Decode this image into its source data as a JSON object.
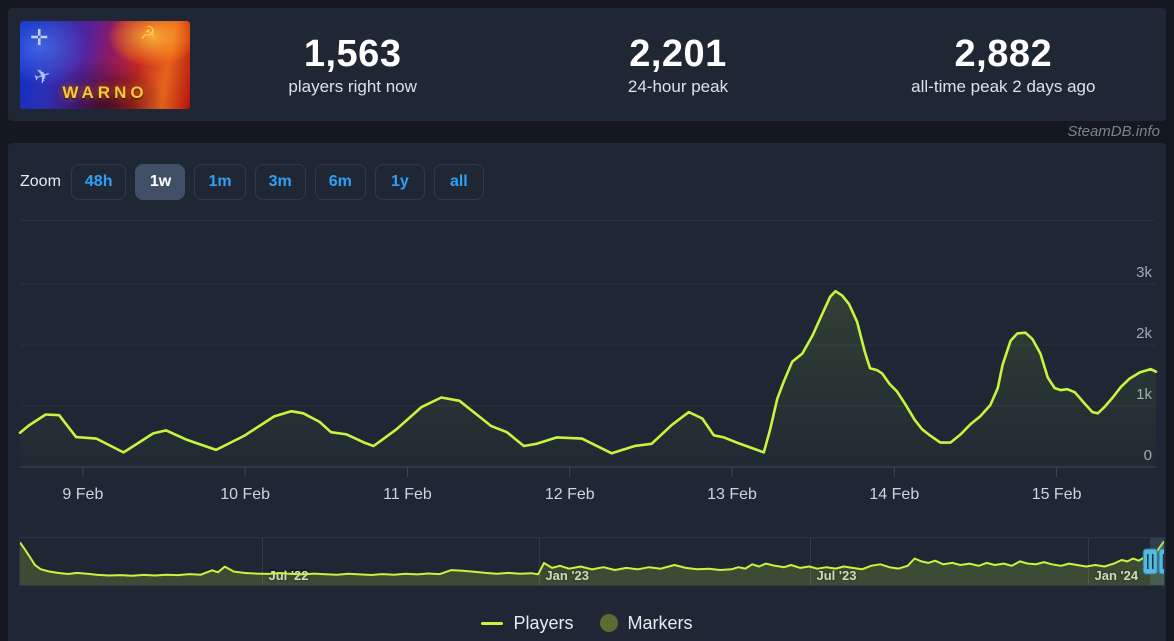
{
  "header": {
    "banner": {
      "game_title": "WARNO"
    },
    "stats": [
      {
        "value": "1,563",
        "label": "players right now"
      },
      {
        "value": "2,201",
        "label": "24-hour peak"
      },
      {
        "value": "2,882",
        "label": "all-time peak 2 days ago"
      }
    ]
  },
  "watermark": "SteamDB.info",
  "toolbar": {
    "zoom_label": "Zoom",
    "buttons": [
      {
        "label": "48h",
        "selected": false
      },
      {
        "label": "1w",
        "selected": true
      },
      {
        "label": "1m",
        "selected": false
      },
      {
        "label": "3m",
        "selected": false
      },
      {
        "label": "6m",
        "selected": false
      },
      {
        "label": "1y",
        "selected": false
      },
      {
        "label": "all",
        "selected": false
      }
    ]
  },
  "legend": [
    {
      "label": "Players",
      "marker": "line",
      "color": "#c6f53e"
    },
    {
      "label": "Markers",
      "marker": "circle",
      "color": "#5d6a34"
    }
  ],
  "chart_data": {
    "type": "line",
    "title": "WARNO concurrent players - 1 week view",
    "colors": {
      "line": "#c6f53e",
      "grid": "#29323e",
      "axis": "#3d4856",
      "tick_label": "#cbd5df",
      "y_label": "#9fabb8",
      "nav_fill": "rgba(170,210,60,0.22)",
      "nav_grid": "#323d4b",
      "nav_label": "#d6dee6",
      "mask": "rgba(118,150,190,0.22)",
      "handle": "#55b9de"
    },
    "y_axis": {
      "side": "right",
      "max_value": 3700,
      "ticks": [
        {
          "v": 0,
          "label": "0"
        },
        {
          "v": 1000,
          "label": "1k"
        },
        {
          "v": 2000,
          "label": "2k"
        },
        {
          "v": 3000,
          "label": "3k"
        }
      ]
    },
    "x_axis": {
      "t_range": [
        -9.3,
        158.7
      ],
      "ticks": [
        {
          "t": 0,
          "label": "9 Feb"
        },
        {
          "t": 24,
          "label": "10 Feb"
        },
        {
          "t": 48,
          "label": "11 Feb"
        },
        {
          "t": 72,
          "label": "12 Feb"
        },
        {
          "t": 96,
          "label": "13 Feb"
        },
        {
          "t": 120,
          "label": "14 Feb"
        },
        {
          "t": 144,
          "label": "15 Feb"
        }
      ]
    },
    "series": [
      {
        "name": "Players",
        "unit": "players",
        "t_unit": "hours since 9 Feb 00:00",
        "points": [
          [
            -9.3,
            560
          ],
          [
            -8,
            680
          ],
          [
            -5.5,
            860
          ],
          [
            -3.5,
            850
          ],
          [
            -1,
            490
          ],
          [
            2,
            465
          ],
          [
            6,
            240
          ],
          [
            10.4,
            550
          ],
          [
            12.3,
            600
          ],
          [
            15.3,
            450
          ],
          [
            19.7,
            280
          ],
          [
            23.9,
            515
          ],
          [
            28.3,
            830
          ],
          [
            30.8,
            915
          ],
          [
            32.6,
            880
          ],
          [
            35,
            740
          ],
          [
            36.7,
            570
          ],
          [
            39,
            535
          ],
          [
            41.6,
            400
          ],
          [
            43,
            345
          ],
          [
            46.4,
            620
          ],
          [
            50.1,
            985
          ],
          [
            53,
            1140
          ],
          [
            55.7,
            1085
          ],
          [
            57.8,
            900
          ],
          [
            60.4,
            670
          ],
          [
            62.7,
            570
          ],
          [
            65.2,
            345
          ],
          [
            67.1,
            380
          ],
          [
            70.1,
            485
          ],
          [
            73.8,
            465
          ],
          [
            78.2,
            225
          ],
          [
            81.6,
            345
          ],
          [
            84.1,
            380
          ],
          [
            87.1,
            690
          ],
          [
            89.6,
            900
          ],
          [
            91.6,
            795
          ],
          [
            93.3,
            520
          ],
          [
            94.8,
            485
          ],
          [
            96.7,
            400
          ],
          [
            99.7,
            280
          ],
          [
            100.7,
            240
          ],
          [
            101.6,
            600
          ],
          [
            102.7,
            1120
          ],
          [
            103.7,
            1415
          ],
          [
            104.9,
            1725
          ],
          [
            106.4,
            1860
          ],
          [
            107.9,
            2155
          ],
          [
            109.3,
            2500
          ],
          [
            110.5,
            2790
          ],
          [
            111.3,
            2882
          ],
          [
            112.3,
            2810
          ],
          [
            113.3,
            2670
          ],
          [
            114.5,
            2380
          ],
          [
            115.6,
            1900
          ],
          [
            116.4,
            1620
          ],
          [
            117.5,
            1585
          ],
          [
            118.2,
            1535
          ],
          [
            119.3,
            1360
          ],
          [
            120.4,
            1240
          ],
          [
            121.6,
            1035
          ],
          [
            123,
            775
          ],
          [
            124.1,
            620
          ],
          [
            125.3,
            515
          ],
          [
            126.8,
            400
          ],
          [
            128.3,
            400
          ],
          [
            129.8,
            535
          ],
          [
            131.3,
            705
          ],
          [
            132.7,
            830
          ],
          [
            134.2,
            1015
          ],
          [
            135.3,
            1295
          ],
          [
            136,
            1670
          ],
          [
            137.2,
            2070
          ],
          [
            138.2,
            2190
          ],
          [
            139.4,
            2201
          ],
          [
            140.4,
            2100
          ],
          [
            141.6,
            1860
          ],
          [
            142.7,
            1465
          ],
          [
            143.7,
            1295
          ],
          [
            144.6,
            1260
          ],
          [
            145.6,
            1275
          ],
          [
            146.7,
            1225
          ],
          [
            147.9,
            1070
          ],
          [
            149.3,
            900
          ],
          [
            150.1,
            880
          ],
          [
            151.1,
            985
          ],
          [
            152.3,
            1140
          ],
          [
            153.5,
            1310
          ],
          [
            154.8,
            1450
          ],
          [
            156.3,
            1550
          ],
          [
            157.9,
            1605
          ],
          [
            158.7,
            1563
          ]
        ]
      }
    ],
    "navigator": {
      "time_span": "Jan 2022 - Feb 2024",
      "v_max": 2900,
      "ticks": [
        {
          "f": 0.212,
          "label": "Jul '22"
        },
        {
          "f": 0.454,
          "label": "Jan '23"
        },
        {
          "f": 0.691,
          "label": "Jul '23"
        },
        {
          "f": 0.934,
          "label": "Jan '24"
        }
      ],
      "selected_from_f": 0.988,
      "points": [
        [
          0,
          2800
        ],
        [
          0.004,
          2350
        ],
        [
          0.009,
          1750
        ],
        [
          0.013,
          1250
        ],
        [
          0.018,
          950
        ],
        [
          0.025,
          800
        ],
        [
          0.033,
          700
        ],
        [
          0.042,
          620
        ],
        [
          0.05,
          700
        ],
        [
          0.06,
          630
        ],
        [
          0.068,
          560
        ],
        [
          0.078,
          520
        ],
        [
          0.088,
          545
        ],
        [
          0.098,
          500
        ],
        [
          0.108,
          560
        ],
        [
          0.118,
          515
        ],
        [
          0.128,
          575
        ],
        [
          0.138,
          545
        ],
        [
          0.148,
          615
        ],
        [
          0.158,
          570
        ],
        [
          0.168,
          880
        ],
        [
          0.173,
          740
        ],
        [
          0.179,
          1130
        ],
        [
          0.187,
          790
        ],
        [
          0.197,
          690
        ],
        [
          0.207,
          650
        ],
        [
          0.217,
          630
        ],
        [
          0.227,
          690
        ],
        [
          0.237,
          630
        ],
        [
          0.247,
          595
        ],
        [
          0.257,
          650
        ],
        [
          0.267,
          610
        ],
        [
          0.277,
          575
        ],
        [
          0.287,
          635
        ],
        [
          0.297,
          595
        ],
        [
          0.307,
          555
        ],
        [
          0.317,
          615
        ],
        [
          0.327,
          575
        ],
        [
          0.337,
          635
        ],
        [
          0.347,
          595
        ],
        [
          0.357,
          655
        ],
        [
          0.367,
          615
        ],
        [
          0.377,
          890
        ],
        [
          0.387,
          840
        ],
        [
          0.397,
          770
        ],
        [
          0.407,
          695
        ],
        [
          0.417,
          645
        ],
        [
          0.427,
          695
        ],
        [
          0.437,
          635
        ],
        [
          0.447,
          675
        ],
        [
          0.453,
          600
        ],
        [
          0.458,
          1380
        ],
        [
          0.465,
          1040
        ],
        [
          0.472,
          1190
        ],
        [
          0.48,
          990
        ],
        [
          0.49,
          1140
        ],
        [
          0.5,
          940
        ],
        [
          0.51,
          1090
        ],
        [
          0.52,
          895
        ],
        [
          0.53,
          1040
        ],
        [
          0.54,
          945
        ],
        [
          0.55,
          1090
        ],
        [
          0.56,
          990
        ],
        [
          0.572,
          1240
        ],
        [
          0.582,
          1040
        ],
        [
          0.592,
          945
        ],
        [
          0.602,
          990
        ],
        [
          0.612,
          895
        ],
        [
          0.622,
          945
        ],
        [
          0.628,
          1090
        ],
        [
          0.634,
          995
        ],
        [
          0.64,
          1290
        ],
        [
          0.646,
          1140
        ],
        [
          0.652,
          1340
        ],
        [
          0.66,
          1190
        ],
        [
          0.668,
          1090
        ],
        [
          0.674,
          1240
        ],
        [
          0.682,
          1040
        ],
        [
          0.69,
          1140
        ],
        [
          0.697,
          990
        ],
        [
          0.705,
          1090
        ],
        [
          0.713,
          995
        ],
        [
          0.72,
          1140
        ],
        [
          0.728,
          1040
        ],
        [
          0.736,
          945
        ],
        [
          0.744,
          1190
        ],
        [
          0.752,
          1290
        ],
        [
          0.76,
          1090
        ],
        [
          0.768,
          995
        ],
        [
          0.776,
          1190
        ],
        [
          0.782,
          1690
        ],
        [
          0.788,
          1490
        ],
        [
          0.794,
          1390
        ],
        [
          0.8,
          1540
        ],
        [
          0.807,
          1290
        ],
        [
          0.815,
          1390
        ],
        [
          0.822,
          1240
        ],
        [
          0.83,
          1340
        ],
        [
          0.838,
          1190
        ],
        [
          0.845,
          1390
        ],
        [
          0.852,
          1240
        ],
        [
          0.86,
          1340
        ],
        [
          0.867,
          1190
        ],
        [
          0.874,
          1490
        ],
        [
          0.881,
          1340
        ],
        [
          0.888,
          1290
        ],
        [
          0.895,
          1440
        ],
        [
          0.902,
          1290
        ],
        [
          0.91,
          1190
        ],
        [
          0.917,
          1340
        ],
        [
          0.924,
          1240
        ],
        [
          0.932,
          1140
        ],
        [
          0.94,
          1240
        ],
        [
          0.948,
          1140
        ],
        [
          0.956,
          1340
        ],
        [
          0.963,
          1590
        ],
        [
          0.968,
          1490
        ],
        [
          0.973,
          1690
        ],
        [
          0.978,
          1540
        ],
        [
          0.983,
          1790
        ],
        [
          0.988,
          1690
        ],
        [
          0.993,
          2100
        ],
        [
          0.997,
          2550
        ],
        [
          1,
          2880
        ]
      ]
    }
  }
}
